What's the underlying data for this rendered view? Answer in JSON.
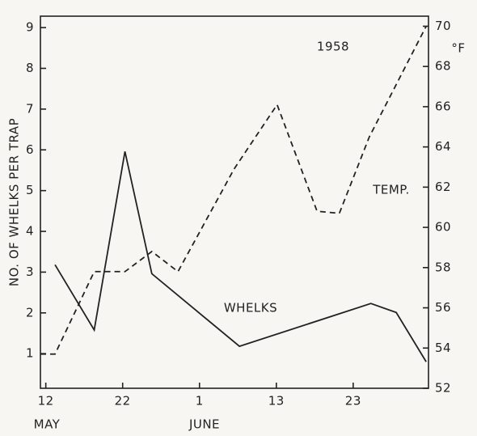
{
  "chart_data": {
    "type": "line",
    "title": "1958",
    "ylabel": "NO. OF WHELKS PER TRAP",
    "y2label": "°F",
    "month_labels": [
      "MAY",
      "JUNE"
    ],
    "xlim": [
      -0.7,
      49.8
    ],
    "xticks": [
      {
        "value": 0,
        "label": "12"
      },
      {
        "value": 10,
        "label": "22"
      },
      {
        "value": 20,
        "label": "1"
      },
      {
        "value": 30,
        "label": "13"
      },
      {
        "value": 40,
        "label": "23"
      }
    ],
    "ylim": [
      0.15,
      9.28
    ],
    "yticks": [
      1,
      2,
      3,
      4,
      5,
      6,
      7,
      8,
      9
    ],
    "y2lim": [
      52,
      70.5
    ],
    "y2ticks": [
      52,
      54,
      56,
      58,
      60,
      62,
      64,
      66,
      68,
      70
    ],
    "series": [
      {
        "name": "WHELKS",
        "color": "#222222",
        "dashed": false,
        "x": [
          1.2,
          6.3,
          10.3,
          13.8,
          25.2,
          42.3,
          45.6,
          49.5
        ],
        "values": [
          3.18,
          1.58,
          5.96,
          2.96,
          1.18,
          2.23,
          2.01,
          0.8
        ]
      },
      {
        "name": "TEMP.",
        "color": "#222222",
        "dashed": true,
        "axis": "y2",
        "x": [
          -0.7,
          1.2,
          6.3,
          10.3,
          13.8,
          17.2,
          24.5,
          30.1,
          35.3,
          38.2,
          42.1,
          49.5
        ],
        "values": [
          53.7,
          53.7,
          57.8,
          57.8,
          58.8,
          57.8,
          62.9,
          66.1,
          60.8,
          60.7,
          64.5,
          70
        ]
      }
    ]
  }
}
